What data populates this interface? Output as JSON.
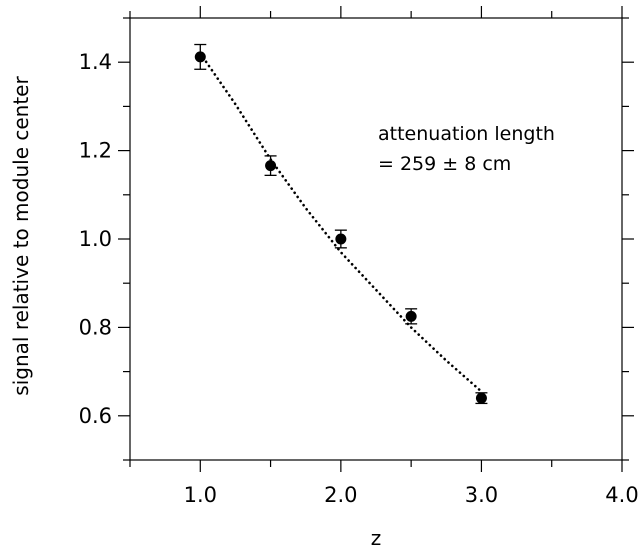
{
  "chart_data": {
    "type": "scatter",
    "title": "",
    "xlabel": "z",
    "ylabel": "signal relative to module center",
    "xlim": [
      0.5,
      4.0
    ],
    "ylim": [
      0.5,
      1.5
    ],
    "grid": false,
    "x_ticks": [
      1.0,
      2.0,
      3.0,
      4.0
    ],
    "x_tick_labels": [
      "1.0",
      "2.0",
      "3.0",
      "4.0"
    ],
    "y_ticks": [
      0.6,
      0.8,
      1.0,
      1.2,
      1.4
    ],
    "y_tick_labels": [
      "0.6",
      "0.8",
      "1.0",
      "1.2",
      "1.4"
    ],
    "series": [
      {
        "type": "points",
        "x": [
          1.0,
          1.5,
          2.0,
          2.5,
          3.0
        ],
        "y": [
          1.412,
          1.166,
          1.0,
          0.825,
          0.64
        ],
        "yerr": [
          0.028,
          0.022,
          0.02,
          0.017,
          0.012
        ],
        "color": "#000000"
      },
      {
        "type": "fit",
        "style": "dotted",
        "x": [
          1.0,
          1.25,
          1.5,
          1.75,
          2.0,
          2.25,
          2.5,
          2.75,
          3.0
        ],
        "y": [
          1.42,
          1.305,
          1.18,
          1.07,
          0.97,
          0.885,
          0.8,
          0.725,
          0.655
        ]
      }
    ],
    "annotation": {
      "lines": [
        "attenuation length",
        "= 259 ± 8 cm"
      ]
    }
  }
}
